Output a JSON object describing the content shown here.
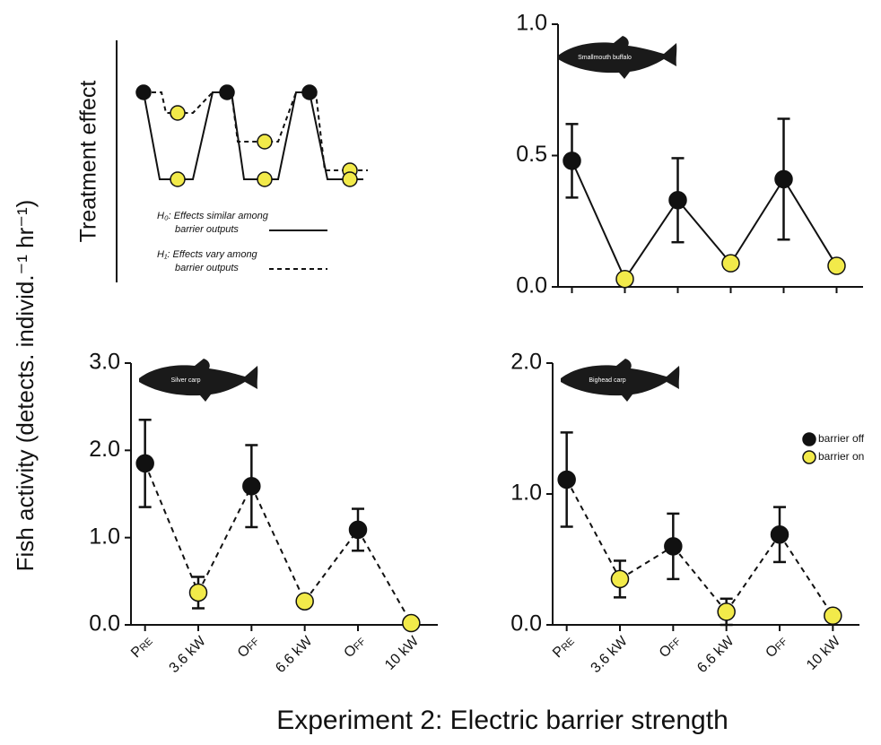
{
  "figure": {
    "ylabel": "Fish activity (detects. individ.⁻¹ hr⁻¹)",
    "xlabel": "Experiment 2: Electric barrier strength"
  },
  "concept": {
    "ylabel": "Treatment effect",
    "hypotheses": [
      {
        "lines": [
          "H₀: Effects similar among",
          "barrier outputs"
        ]
      },
      {
        "lines": [
          "H₁: Effects vary among",
          "barrier outputs"
        ]
      }
    ]
  },
  "chart_data": [
    {
      "type": "line",
      "title": "Smallmouth buffalo",
      "line_style": "solid",
      "categories": [
        null,
        null,
        null,
        null,
        null,
        null
      ],
      "series": [
        {
          "color": "#111111",
          "values": [
            0.48,
            null,
            0.33,
            null,
            0.41,
            null
          ],
          "errors": [
            0.14,
            null,
            0.16,
            null,
            0.23,
            null
          ]
        },
        {
          "color": "#f2ea4a",
          "values": [
            null,
            0.03,
            null,
            0.09,
            null,
            0.08
          ],
          "errors": [
            null,
            null,
            null,
            null,
            null,
            null
          ]
        }
      ],
      "ylim": [
        0,
        1
      ],
      "yticks": [
        {
          "value": 0,
          "label": "0.0"
        },
        0.5,
        {
          "value": 1,
          "label": "1.0"
        }
      ]
    },
    {
      "type": "line",
      "title": "Silver carp",
      "line_style": "dashed",
      "categories": [
        "Pre",
        "3.6 kW",
        "Off",
        "6.6 kW",
        "Off",
        "10 kW"
      ],
      "series": [
        {
          "color": "#111111",
          "values": [
            1.85,
            null,
            1.59,
            null,
            1.09,
            null
          ],
          "errors": [
            0.5,
            null,
            0.47,
            null,
            0.24,
            null
          ]
        },
        {
          "color": "#f2ea4a",
          "values": [
            null,
            0.37,
            null,
            0.27,
            null,
            0.02
          ],
          "errors": [
            null,
            0.18,
            null,
            null,
            null,
            null
          ]
        }
      ],
      "ylim": [
        0,
        3
      ],
      "yticks": [
        {
          "value": 0,
          "label": "0.0"
        },
        {
          "value": 1,
          "label": "1.0"
        },
        {
          "value": 2,
          "label": "2.0"
        },
        {
          "value": 3,
          "label": "3.0"
        }
      ]
    },
    {
      "type": "line",
      "title": "Bighead carp",
      "line_style": "dashed",
      "legend": "right",
      "categories": [
        "Pre",
        "3.6 kW",
        "Off",
        "6.6 kW",
        "Off",
        "10 kW"
      ],
      "series": [
        {
          "name": "barrier off",
          "color": "#111111",
          "values": [
            1.11,
            null,
            0.6,
            null,
            0.69,
            null
          ],
          "errors": [
            0.36,
            null,
            0.25,
            null,
            0.21,
            null
          ]
        },
        {
          "name": "barrier on",
          "color": "#f2ea4a",
          "values": [
            null,
            0.35,
            null,
            0.1,
            null,
            0.07
          ],
          "errors": [
            null,
            0.14,
            null,
            0.1,
            null,
            null
          ]
        }
      ],
      "ylim": [
        0,
        2
      ],
      "yticks": [
        {
          "value": 0,
          "label": "0.0"
        },
        {
          "value": 1,
          "label": "1.0"
        },
        {
          "value": 2,
          "label": "2.0"
        }
      ]
    }
  ]
}
